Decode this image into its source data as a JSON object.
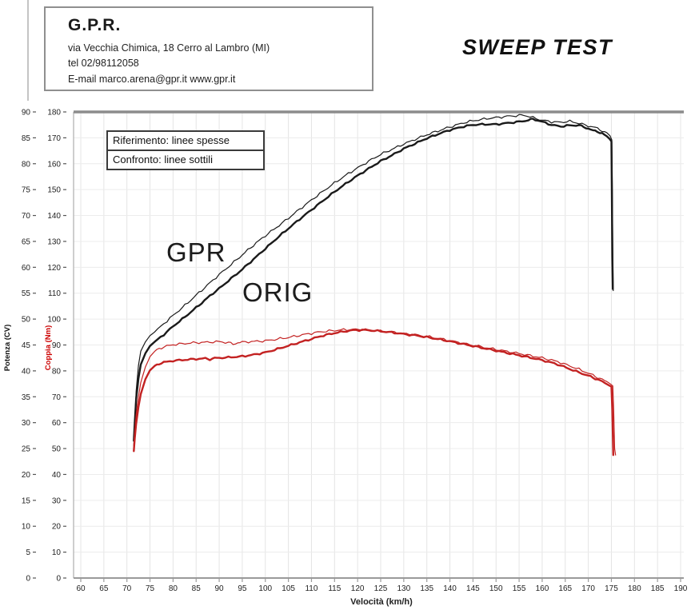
{
  "header": {
    "company": "G.P.R.",
    "address": "via Vecchia Chimica, 18 Cerro al Lambro (MI)",
    "phone": "tel 02/98112058",
    "email_line": "E-mail marco.arena@gpr.it  www.gpr.it"
  },
  "title": "SWEEP TEST",
  "legend": {
    "reference": "Riferimento: linee spesse",
    "comparison": "Confronto: linee sottili"
  },
  "annotations": {
    "gpr": "GPR",
    "orig": "ORIG"
  },
  "colors": {
    "power_line": "#1a1a1a",
    "torque_line": "#c32222",
    "torque_axis_label": "#cc0000",
    "grid": "#e4e4e4",
    "grid_light": "#ececec",
    "frame_top": "#8c8c8c",
    "axis": "#9a9a9a",
    "tick_text": "#222222"
  },
  "chart_data": {
    "type": "line",
    "title": "SWEEP TEST",
    "xlabel": "Velocità (km/h)",
    "x_range": [
      60,
      190
    ],
    "x_tick_step": 5,
    "grid": true,
    "axes_left": [
      {
        "id": "power",
        "label": "Potenza (CV)",
        "range": [
          0,
          90
        ],
        "tick_step": 5
      },
      {
        "id": "torque",
        "label": "Coppia (Nm)",
        "range": [
          0,
          180
        ],
        "tick_step": 10
      }
    ],
    "legend_position": "top-left",
    "series": [
      {
        "id": "gpr_power",
        "name": "GPR",
        "quantity": "Potenza (CV)",
        "axis": "power",
        "weight": "thin",
        "points": [
          [
            71.5,
            25.5
          ],
          [
            71.7,
            30
          ],
          [
            72,
            36
          ],
          [
            72.5,
            41
          ],
          [
            73,
            43.8
          ],
          [
            74,
            45.6
          ],
          [
            75,
            46.8
          ],
          [
            76,
            47.5
          ],
          [
            78,
            49.1
          ],
          [
            80,
            50.7
          ],
          [
            82,
            52.2
          ],
          [
            85,
            54.6
          ],
          [
            88,
            57
          ],
          [
            90,
            58.6
          ],
          [
            92,
            60.1
          ],
          [
            95,
            62.4
          ],
          [
            98,
            64.7
          ],
          [
            100,
            66.1
          ],
          [
            103,
            68.1
          ],
          [
            105,
            69.5
          ],
          [
            108,
            71.6
          ],
          [
            110,
            73
          ],
          [
            113,
            75
          ],
          [
            115,
            76.3
          ],
          [
            118,
            78.1
          ],
          [
            120,
            79.2
          ],
          [
            123,
            80.8
          ],
          [
            125,
            81.8
          ],
          [
            128,
            83
          ],
          [
            130,
            83.8
          ],
          [
            133,
            84.9
          ],
          [
            135,
            85.6
          ],
          [
            138,
            86.5
          ],
          [
            140,
            87.1
          ],
          [
            143,
            87.9
          ],
          [
            145,
            88.3
          ],
          [
            148,
            88.7
          ],
          [
            150,
            88.9
          ],
          [
            153,
            89.2
          ],
          [
            155,
            89.3
          ],
          [
            156,
            89.4
          ],
          [
            158,
            88.9
          ],
          [
            160,
            88.4
          ],
          [
            162,
            88.1
          ],
          [
            164,
            88
          ],
          [
            166,
            88.2
          ],
          [
            168,
            87.8
          ],
          [
            170,
            87.3
          ],
          [
            171,
            87.1
          ],
          [
            172,
            86.8
          ],
          [
            173,
            86.4
          ],
          [
            174,
            86
          ],
          [
            174.7,
            85.4
          ],
          [
            175.1,
            84.6
          ],
          [
            175.2,
            76
          ],
          [
            175.3,
            64
          ],
          [
            175.4,
            55.5
          ]
        ]
      },
      {
        "id": "orig_power",
        "name": "ORIG",
        "quantity": "Potenza (CV)",
        "axis": "power",
        "weight": "thick",
        "points": [
          [
            71.5,
            26.5
          ],
          [
            71.7,
            30
          ],
          [
            72,
            34.5
          ],
          [
            72.5,
            38.5
          ],
          [
            73,
            41.2
          ],
          [
            74,
            43.4
          ],
          [
            75,
            44.8
          ],
          [
            76,
            45.6
          ],
          [
            78,
            47
          ],
          [
            80,
            48.6
          ],
          [
            82,
            50
          ],
          [
            85,
            52.2
          ],
          [
            88,
            54.5
          ],
          [
            90,
            55.9
          ],
          [
            92,
            57.4
          ],
          [
            95,
            59.6
          ],
          [
            98,
            62
          ],
          [
            100,
            63.6
          ],
          [
            103,
            66
          ],
          [
            105,
            67.5
          ],
          [
            108,
            69.7
          ],
          [
            110,
            71.1
          ],
          [
            113,
            73.2
          ],
          [
            115,
            74.6
          ],
          [
            118,
            76.5
          ],
          [
            120,
            77.7
          ],
          [
            123,
            79.4
          ],
          [
            125,
            80.5
          ],
          [
            128,
            81.9
          ],
          [
            130,
            82.9
          ],
          [
            133,
            84.1
          ],
          [
            135,
            84.9
          ],
          [
            138,
            85.9
          ],
          [
            140,
            86.5
          ],
          [
            143,
            87.2
          ],
          [
            145,
            87.5
          ],
          [
            147,
            87.6
          ],
          [
            150,
            87.6
          ],
          [
            152,
            87.8
          ],
          [
            155,
            88.1
          ],
          [
            157,
            88.4
          ],
          [
            158,
            88.6
          ],
          [
            159,
            88.4
          ],
          [
            160,
            88.1
          ],
          [
            162,
            87.5
          ],
          [
            164,
            87.2
          ],
          [
            166,
            87.4
          ],
          [
            168,
            87.4
          ],
          [
            169,
            87.1
          ],
          [
            170,
            86.8
          ],
          [
            171,
            86.4
          ],
          [
            172,
            86.2
          ],
          [
            173,
            85.9
          ],
          [
            174,
            85.3
          ],
          [
            174.6,
            84.8
          ],
          [
            175,
            84.3
          ],
          [
            175.1,
            75
          ],
          [
            175.2,
            62
          ],
          [
            175.3,
            55.8
          ]
        ]
      },
      {
        "id": "gpr_torque",
        "name": "GPR",
        "quantity": "Coppia (Nm)",
        "axis": "torque",
        "weight": "thin",
        "points": [
          [
            71.5,
            51
          ],
          [
            71.7,
            57
          ],
          [
            72,
            63
          ],
          [
            72.5,
            70
          ],
          [
            73,
            75.5
          ],
          [
            74,
            81.5
          ],
          [
            75,
            85.5
          ],
          [
            76,
            87.5
          ],
          [
            77,
            88.6
          ],
          [
            78,
            89.3
          ],
          [
            80,
            90.1
          ],
          [
            82,
            90.5
          ],
          [
            85,
            90.9
          ],
          [
            88,
            91.1
          ],
          [
            90,
            91.3
          ],
          [
            92,
            90.9
          ],
          [
            93,
            90.3
          ],
          [
            94,
            90.9
          ],
          [
            95,
            91.1
          ],
          [
            97,
            91.3
          ],
          [
            100,
            91.6
          ],
          [
            102,
            92.1
          ],
          [
            105,
            92.9
          ],
          [
            108,
            93.9
          ],
          [
            110,
            94.5
          ],
          [
            112,
            95.1
          ],
          [
            115,
            95.6
          ],
          [
            117,
            95.9
          ],
          [
            119,
            96
          ],
          [
            121,
            96
          ],
          [
            123,
            95.7
          ],
          [
            125,
            95.4
          ],
          [
            128,
            94.9
          ],
          [
            130,
            94.4
          ],
          [
            133,
            93.8
          ],
          [
            135,
            93.3
          ],
          [
            138,
            92.4
          ],
          [
            140,
            91.7
          ],
          [
            143,
            90.6
          ],
          [
            145,
            89.9
          ],
          [
            148,
            88.9
          ],
          [
            150,
            88.3
          ],
          [
            153,
            87.3
          ],
          [
            155,
            86.7
          ],
          [
            158,
            85.7
          ],
          [
            160,
            85
          ],
          [
            162,
            84.2
          ],
          [
            164,
            83.2
          ],
          [
            166,
            81.9
          ],
          [
            168,
            80.6
          ],
          [
            170,
            79.1
          ],
          [
            171,
            78.3
          ],
          [
            172,
            77.5
          ],
          [
            173,
            76.7
          ],
          [
            174,
            75.9
          ],
          [
            174.8,
            74.9
          ],
          [
            175.3,
            74.2
          ],
          [
            175.5,
            65
          ],
          [
            175.7,
            50
          ],
          [
            175.9,
            47.5
          ]
        ]
      },
      {
        "id": "orig_torque",
        "name": "ORIG",
        "quantity": "Coppia (Nm)",
        "axis": "torque",
        "weight": "thick",
        "points": [
          [
            71.5,
            49
          ],
          [
            71.7,
            54
          ],
          [
            72,
            59.5
          ],
          [
            72.5,
            66
          ],
          [
            73,
            71
          ],
          [
            74,
            76.8
          ],
          [
            75,
            80.2
          ],
          [
            76,
            81.9
          ],
          [
            77,
            82.8
          ],
          [
            78,
            83.3
          ],
          [
            80,
            83.9
          ],
          [
            82,
            84.2
          ],
          [
            85,
            84.6
          ],
          [
            87,
            84.8
          ],
          [
            88,
            84.5
          ],
          [
            89,
            84.9
          ],
          [
            90,
            85
          ],
          [
            92,
            85.2
          ],
          [
            95,
            85.6
          ],
          [
            97,
            86.1
          ],
          [
            100,
            87.1
          ],
          [
            102,
            88.1
          ],
          [
            105,
            89.7
          ],
          [
            108,
            91.3
          ],
          [
            110,
            92.3
          ],
          [
            112,
            93.4
          ],
          [
            115,
            94.6
          ],
          [
            117,
            95.2
          ],
          [
            119,
            95.7
          ],
          [
            121,
            95.8
          ],
          [
            123,
            95.6
          ],
          [
            125,
            95.3
          ],
          [
            128,
            94.7
          ],
          [
            130,
            94.2
          ],
          [
            133,
            93.6
          ],
          [
            135,
            93
          ],
          [
            138,
            92.1
          ],
          [
            140,
            91.4
          ],
          [
            143,
            90.3
          ],
          [
            145,
            89.6
          ],
          [
            148,
            88.5
          ],
          [
            150,
            87.8
          ],
          [
            153,
            86.7
          ],
          [
            155,
            86
          ],
          [
            158,
            84.9
          ],
          [
            160,
            84.1
          ],
          [
            162,
            83.2
          ],
          [
            164,
            82.1
          ],
          [
            166,
            80.7
          ],
          [
            168,
            79.4
          ],
          [
            170,
            78.1
          ],
          [
            171,
            77.4
          ],
          [
            172,
            76.7
          ],
          [
            173,
            75.9
          ],
          [
            174,
            74.9
          ],
          [
            174.6,
            74.3
          ],
          [
            175,
            73.9
          ],
          [
            175.2,
            65
          ],
          [
            175.4,
            47.5
          ]
        ]
      }
    ]
  }
}
